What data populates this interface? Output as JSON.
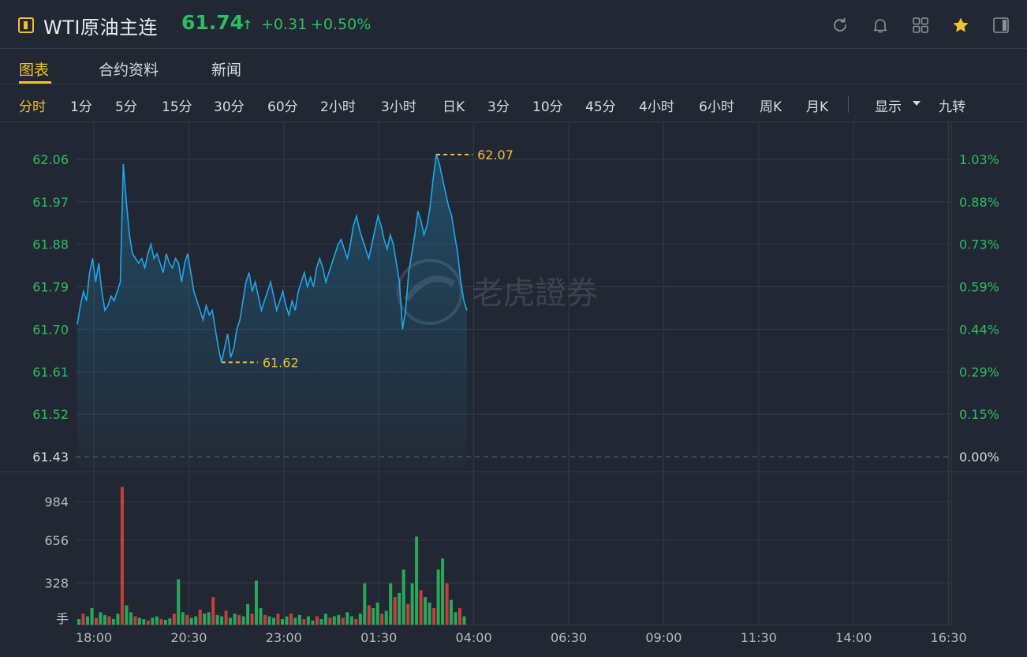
{
  "header": {
    "symbol": "WTI原油主连",
    "price": "61.74",
    "arrow": "↑",
    "change": "+0.31",
    "change_pct": "+0.50%"
  },
  "tabs": [
    "图表",
    "合约资料",
    "新闻"
  ],
  "periods": [
    "分时",
    "1分",
    "5分",
    "15分",
    "30分",
    "60分",
    "2小时",
    "3小时",
    "日K",
    "3分",
    "10分",
    "45分",
    "4小时",
    "6小时",
    "周K",
    "月K"
  ],
  "display_label": "显示",
  "nine_label": "九转",
  "watermark": "老虎證券",
  "colors": {
    "up": "#2dbd63",
    "down": "#e0443e",
    "line": "#1ea7e8",
    "accent": "#f2c12e"
  },
  "chart_data": {
    "type": "line",
    "price_ticks": [
      "62.06",
      "61.97",
      "61.88",
      "61.79",
      "61.70",
      "61.61",
      "61.52",
      "61.43"
    ],
    "pct_ticks": [
      "1.03%",
      "0.88%",
      "0.73%",
      "0.59%",
      "0.44%",
      "0.29%",
      "0.15%",
      "0.00%"
    ],
    "volume_ticks": [
      "984",
      "656",
      "328"
    ],
    "volume_unit": "手",
    "x_ticks": [
      "18:00",
      "20:30",
      "23:00",
      "01:30",
      "04:00",
      "06:30",
      "09:00",
      "11:30",
      "14:00",
      "16:30"
    ],
    "prev_close": 61.43,
    "ylim": [
      61.43,
      62.06
    ],
    "high_label": "62.07",
    "low_label": "61.62",
    "price_series": [
      61.71,
      61.75,
      61.78,
      61.76,
      61.82,
      61.85,
      61.8,
      61.84,
      61.78,
      61.74,
      61.75,
      61.77,
      61.76,
      61.78,
      61.8,
      62.05,
      61.97,
      61.9,
      61.86,
      61.85,
      61.84,
      61.85,
      61.83,
      61.86,
      61.88,
      61.85,
      61.86,
      61.84,
      61.82,
      61.86,
      61.84,
      61.83,
      61.85,
      61.84,
      61.8,
      61.84,
      61.86,
      61.82,
      61.78,
      61.76,
      61.74,
      61.72,
      61.75,
      61.73,
      61.74,
      61.7,
      61.66,
      61.63,
      61.66,
      61.69,
      61.64,
      61.66,
      61.7,
      61.72,
      61.76,
      61.8,
      61.82,
      61.78,
      61.8,
      61.77,
      61.74,
      61.76,
      61.78,
      61.8,
      61.77,
      61.74,
      61.76,
      61.78,
      61.75,
      61.73,
      61.76,
      61.74,
      61.78,
      61.8,
      61.82,
      61.79,
      61.81,
      61.79,
      61.83,
      61.85,
      61.83,
      61.8,
      61.82,
      61.84,
      61.86,
      61.88,
      61.89,
      61.87,
      61.85,
      61.88,
      61.92,
      61.94,
      61.91,
      61.89,
      61.87,
      61.85,
      61.88,
      61.91,
      61.94,
      61.92,
      61.89,
      61.87,
      61.9,
      61.88,
      61.84,
      61.8,
      61.7,
      61.74,
      61.82,
      61.86,
      61.9,
      61.95,
      61.93,
      61.9,
      61.92,
      61.96,
      62.02,
      62.07,
      62.05,
      62.02,
      61.99,
      61.96,
      61.94,
      61.9,
      61.86,
      61.8,
      61.76,
      61.74
    ],
    "volume_series": [
      40,
      80,
      60,
      120,
      50,
      90,
      70,
      60,
      40,
      80,
      1000,
      140,
      90,
      60,
      50,
      40,
      30,
      50,
      60,
      40,
      35,
      45,
      80,
      330,
      90,
      70,
      50,
      60,
      110,
      80,
      90,
      200,
      70,
      60,
      100,
      50,
      80,
      70,
      60,
      150,
      80,
      320,
      120,
      70,
      60,
      50,
      80,
      40,
      60,
      80,
      50,
      70,
      40,
      60,
      30,
      60,
      40,
      80,
      50,
      60,
      70,
      50,
      90,
      60,
      40,
      80,
      300,
      140,
      120,
      160,
      80,
      100,
      300,
      200,
      230,
      400,
      150,
      300,
      640,
      250,
      200,
      160,
      120,
      400,
      480,
      300,
      180,
      90,
      120,
      60
    ]
  }
}
